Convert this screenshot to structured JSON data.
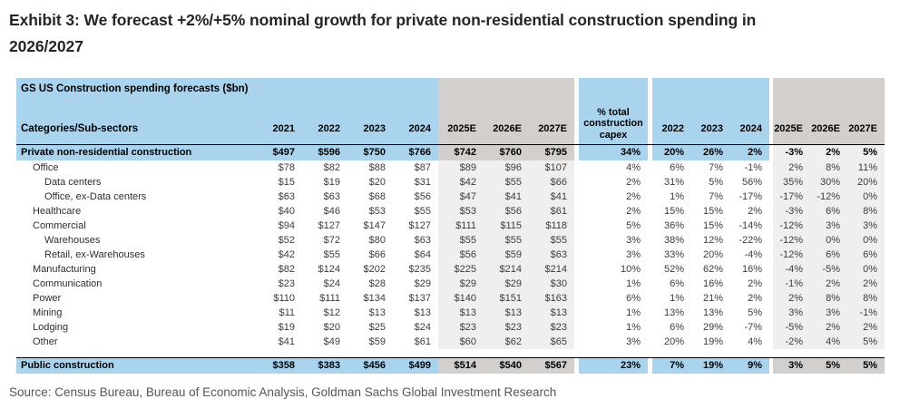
{
  "title_lines": [
    "Exhibit 3: We forecast +2%/+5% nominal growth for private non-residential construction spending in",
    "2026/2027"
  ],
  "source": "Source: Census Bureau, Bureau of Economic Analysis, Goldman Sachs Global Investment Research",
  "colors": {
    "header_blue": "#aad3ee",
    "forecast_gray_dark": "#d2cfcc",
    "forecast_gray_light": "#f0efee"
  },
  "table": {
    "title": "GS US Construction spending forecasts ($bn)",
    "label_header": "Categories/Sub-sectors",
    "groups": {
      "levels_actual": [
        "2021",
        "2022",
        "2023",
        "2024"
      ],
      "levels_forecast": [
        "2025E",
        "2026E",
        "2027E"
      ],
      "capex_share": "% total construction capex",
      "growth_actual": [
        "2022",
        "2023",
        "2024"
      ],
      "growth_forecast": [
        "2025E",
        "2026E",
        "2027E"
      ]
    },
    "rows": [
      {
        "label": "Private non-residential construction",
        "indent": 0,
        "bold": true,
        "levels_actual": [
          "$497",
          "$596",
          "$750",
          "$766"
        ],
        "levels_forecast": [
          "$742",
          "$760",
          "$795"
        ],
        "capex_share": "34%",
        "growth_actual": [
          "20%",
          "26%",
          "2%"
        ],
        "growth_forecast": [
          "-3%",
          "2%",
          "5%"
        ]
      },
      {
        "label": "Office",
        "indent": 1,
        "bold": false,
        "levels_actual": [
          "$78",
          "$82",
          "$88",
          "$87"
        ],
        "levels_forecast": [
          "$89",
          "$96",
          "$107"
        ],
        "capex_share": "4%",
        "growth_actual": [
          "6%",
          "7%",
          "-1%"
        ],
        "growth_forecast": [
          "2%",
          "8%",
          "11%"
        ]
      },
      {
        "label": "Data centers",
        "indent": 2,
        "bold": false,
        "levels_actual": [
          "$15",
          "$19",
          "$20",
          "$31"
        ],
        "levels_forecast": [
          "$42",
          "$55",
          "$66"
        ],
        "capex_share": "2%",
        "growth_actual": [
          "31%",
          "5%",
          "56%"
        ],
        "growth_forecast": [
          "35%",
          "30%",
          "20%"
        ]
      },
      {
        "label": "Office, ex-Data centers",
        "indent": 2,
        "bold": false,
        "levels_actual": [
          "$63",
          "$63",
          "$68",
          "$56"
        ],
        "levels_forecast": [
          "$47",
          "$41",
          "$41"
        ],
        "capex_share": "2%",
        "growth_actual": [
          "1%",
          "7%",
          "-17%"
        ],
        "growth_forecast": [
          "-17%",
          "-12%",
          "0%"
        ]
      },
      {
        "label": "Healthcare",
        "indent": 1,
        "bold": false,
        "levels_actual": [
          "$40",
          "$46",
          "$53",
          "$55"
        ],
        "levels_forecast": [
          "$53",
          "$56",
          "$61"
        ],
        "capex_share": "2%",
        "growth_actual": [
          "15%",
          "15%",
          "2%"
        ],
        "growth_forecast": [
          "-3%",
          "6%",
          "8%"
        ]
      },
      {
        "label": "Commercial",
        "indent": 1,
        "bold": false,
        "levels_actual": [
          "$94",
          "$127",
          "$147",
          "$127"
        ],
        "levels_forecast": [
          "$111",
          "$115",
          "$118"
        ],
        "capex_share": "5%",
        "growth_actual": [
          "36%",
          "15%",
          "-14%"
        ],
        "growth_forecast": [
          "-12%",
          "3%",
          "3%"
        ]
      },
      {
        "label": "Warehouses",
        "indent": 2,
        "bold": false,
        "levels_actual": [
          "$52",
          "$72",
          "$80",
          "$63"
        ],
        "levels_forecast": [
          "$55",
          "$55",
          "$55"
        ],
        "capex_share": "3%",
        "growth_actual": [
          "38%",
          "12%",
          "-22%"
        ],
        "growth_forecast": [
          "-12%",
          "0%",
          "0%"
        ]
      },
      {
        "label": "Retail, ex-Warehouses",
        "indent": 2,
        "bold": false,
        "levels_actual": [
          "$42",
          "$55",
          "$66",
          "$64"
        ],
        "levels_forecast": [
          "$56",
          "$59",
          "$63"
        ],
        "capex_share": "3%",
        "growth_actual": [
          "33%",
          "20%",
          "-4%"
        ],
        "growth_forecast": [
          "-12%",
          "6%",
          "6%"
        ]
      },
      {
        "label": "Manufacturing",
        "indent": 1,
        "bold": false,
        "levels_actual": [
          "$82",
          "$124",
          "$202",
          "$235"
        ],
        "levels_forecast": [
          "$225",
          "$214",
          "$214"
        ],
        "capex_share": "10%",
        "growth_actual": [
          "52%",
          "62%",
          "16%"
        ],
        "growth_forecast": [
          "-4%",
          "-5%",
          "0%"
        ]
      },
      {
        "label": "Communication",
        "indent": 1,
        "bold": false,
        "levels_actual": [
          "$23",
          "$24",
          "$28",
          "$29"
        ],
        "levels_forecast": [
          "$29",
          "$29",
          "$30"
        ],
        "capex_share": "1%",
        "growth_actual": [
          "6%",
          "16%",
          "2%"
        ],
        "growth_forecast": [
          "-1%",
          "2%",
          "2%"
        ]
      },
      {
        "label": "Power",
        "indent": 1,
        "bold": false,
        "levels_actual": [
          "$110",
          "$111",
          "$134",
          "$137"
        ],
        "levels_forecast": [
          "$140",
          "$151",
          "$163"
        ],
        "capex_share": "6%",
        "growth_actual": [
          "1%",
          "21%",
          "2%"
        ],
        "growth_forecast": [
          "2%",
          "8%",
          "8%"
        ]
      },
      {
        "label": "Mining",
        "indent": 1,
        "bold": false,
        "levels_actual": [
          "$11",
          "$12",
          "$13",
          "$13"
        ],
        "levels_forecast": [
          "$13",
          "$13",
          "$13"
        ],
        "capex_share": "1%",
        "growth_actual": [
          "13%",
          "13%",
          "5%"
        ],
        "growth_forecast": [
          "3%",
          "3%",
          "-1%"
        ]
      },
      {
        "label": "Lodging",
        "indent": 1,
        "bold": false,
        "levels_actual": [
          "$19",
          "$20",
          "$25",
          "$24"
        ],
        "levels_forecast": [
          "$23",
          "$23",
          "$23"
        ],
        "capex_share": "1%",
        "growth_actual": [
          "6%",
          "29%",
          "-7%"
        ],
        "growth_forecast": [
          "-5%",
          "2%",
          "2%"
        ]
      },
      {
        "label": "Other",
        "indent": 1,
        "bold": false,
        "levels_actual": [
          "$41",
          "$49",
          "$59",
          "$61"
        ],
        "levels_forecast": [
          "$60",
          "$62",
          "$65"
        ],
        "capex_share": "3%",
        "growth_actual": [
          "20%",
          "19%",
          "4%"
        ],
        "growth_forecast": [
          "-2%",
          "4%",
          "5%"
        ]
      },
      {
        "label": "Public construction",
        "indent": 0,
        "bold": true,
        "gap_before": true,
        "levels_actual": [
          "$358",
          "$383",
          "$456",
          "$499"
        ],
        "levels_forecast": [
          "$514",
          "$540",
          "$567"
        ],
        "capex_share": "23%",
        "growth_actual": [
          "7%",
          "19%",
          "9%"
        ],
        "growth_forecast": [
          "3%",
          "5%",
          "5%"
        ]
      }
    ]
  }
}
